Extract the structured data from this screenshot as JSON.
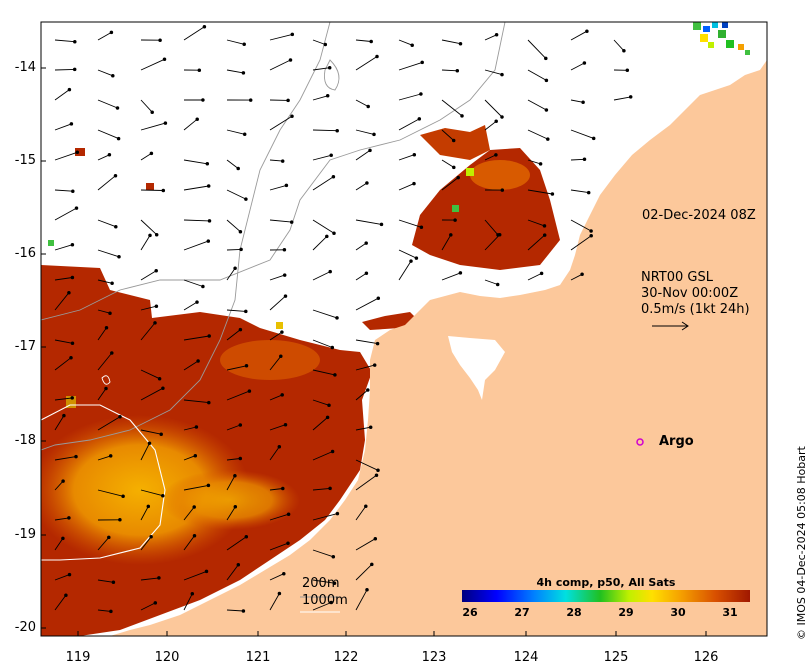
{
  "timestamp_label": "02-Dec-2024 08Z",
  "current_block": {
    "line1": "NRT00 GSL",
    "line2": "30-Nov 00:00Z",
    "line3": "0.5m/s (1kt 24h)"
  },
  "argo": {
    "label": "Argo",
    "marker_color": "#d000d0"
  },
  "credit": "© IMOS 04-Dec-2024 05:08 Hobart",
  "contours": {
    "line1": "200m",
    "line2": "1000m"
  },
  "colorbar": {
    "title": "4h comp, p50, All Sats",
    "ticks": [
      "26",
      "27",
      "28",
      "29",
      "30",
      "31"
    ]
  },
  "axes": {
    "lat_ticks": [
      "-14",
      "-15",
      "-16",
      "-17",
      "-18",
      "-19",
      "-20"
    ],
    "lon_ticks": [
      "119",
      "120",
      "121",
      "122",
      "123",
      "124",
      "125",
      "126"
    ]
  },
  "colors": {
    "land": "#fcc89b",
    "warm_dark": "#b42800",
    "warm_mid": "#d85a00",
    "warm_light": "#f2a000",
    "ocean_nodata": "#ffffff"
  }
}
